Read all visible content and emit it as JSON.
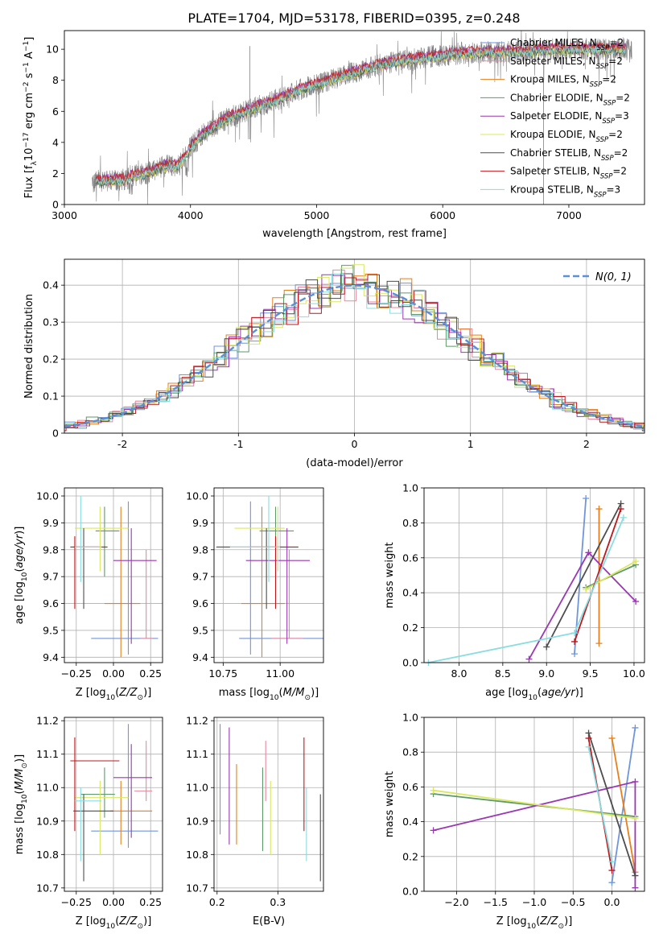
{
  "figure_title": "PLATE=1704, MJD=53178, FIBERID=0395, z=0.248",
  "colors": {
    "Chabrier MILES": "#6f95dd",
    "Salpeter MILES": "#e9879e",
    "Kroupa MILES": "#e67f1c",
    "Chabrier ELODIE": "#5e9a6a",
    "Salpeter ELODIE": "#9b37b4",
    "Kroupa ELODIE": "#d9e85e",
    "Chabrier STELIB": "#4d4d4d",
    "Salpeter STELIB": "#c0171c",
    "Kroupa STELIB": "#88dde0",
    "data": "#808080",
    "gaussian": "#5b8fd8"
  },
  "chart_data": [
    {
      "id": "spectrum",
      "type": "line",
      "xlabel": "wavelength [Angstrom, rest frame]",
      "ylabel": "Flux [f_λ 10^-17 erg cm^-2 s^-1 A^-1]",
      "xlim": [
        3000,
        7600
      ],
      "ylim": [
        0,
        11.2
      ],
      "xticks": [
        3000,
        4000,
        5000,
        6000,
        7000
      ],
      "yticks": [
        0,
        2,
        4,
        6,
        8,
        10
      ],
      "grid": false,
      "legend_position": "top-right",
      "legend": [
        {
          "name": "Chabrier MILES",
          "nssp": "2"
        },
        {
          "name": "Salpeter MILES",
          "nssp": "2"
        },
        {
          "name": "Kroupa MILES",
          "nssp": "2"
        },
        {
          "name": "Chabrier ELODIE",
          "nssp": "2"
        },
        {
          "name": "Salpeter ELODIE",
          "nssp": "3"
        },
        {
          "name": "Kroupa ELODIE",
          "nssp": "2"
        },
        {
          "name": "Chabrier STELIB",
          "nssp": "2"
        },
        {
          "name": "Salpeter STELIB",
          "nssp": "2"
        },
        {
          "name": "Kroupa STELIB",
          "nssp": "3"
        }
      ],
      "continuum": {
        "x": [
          3220,
          3500,
          3520,
          3650,
          3800,
          3900,
          3950,
          4000,
          4100,
          4300,
          4500,
          4700,
          4900,
          5100,
          5300,
          5500,
          5700,
          5900,
          6100,
          6300,
          6500,
          6700,
          6900,
          7100,
          7300,
          7500
        ],
        "y": [
          1.5,
          1.6,
          1.8,
          2.0,
          2.5,
          2.5,
          3.0,
          3.7,
          4.5,
          5.6,
          6.2,
          6.8,
          7.5,
          8.0,
          8.5,
          9.0,
          9.3,
          9.5,
          9.7,
          9.8,
          9.8,
          9.9,
          10.0,
          10.0,
          10.0,
          10.0
        ]
      }
    },
    {
      "id": "residuals",
      "type": "histogram",
      "xlabel": "(data-model)/error",
      "ylabel": "Normed distribution",
      "xlim": [
        -2.5,
        2.5
      ],
      "ylim": [
        0,
        0.47
      ],
      "xticks": [
        -2,
        -1,
        0,
        1,
        2
      ],
      "yticks": [
        0.0,
        0.1,
        0.2,
        0.3,
        0.4
      ],
      "grid": true,
      "legend_position": "top-right",
      "gaussian_label": "N(0, 1)",
      "bin_width": 0.1
    },
    {
      "id": "age_vs_Z",
      "type": "errorbar",
      "xlabel": "Z [log10(Z/Z_sun)]",
      "ylabel": "age [log10(age/yr)]",
      "xlim": [
        -0.33,
        0.33
      ],
      "ylim": [
        9.38,
        10.03
      ],
      "xticks": [
        -0.25,
        0.0,
        0.25
      ],
      "xticklabels": [
        "−0.25",
        "0.00",
        "0.25"
      ],
      "yticks": [
        9.4,
        9.5,
        9.6,
        9.7,
        9.8,
        9.9,
        10.0
      ],
      "yticklabels": [
        "9.4",
        "9.5",
        "9.6",
        "9.7",
        "9.8",
        "9.9",
        "10.0"
      ],
      "grid": true,
      "points": [
        {
          "model": "Chabrier MILES",
          "x": 0.1,
          "xlo": -0.15,
          "xhi": 0.3,
          "y": 9.47,
          "ylo": 9.41,
          "yhi": 9.98
        },
        {
          "model": "Salpeter MILES",
          "x": 0.22,
          "xlo": 0.18,
          "xhi": 0.26,
          "y": 9.47,
          "ylo": 9.47,
          "yhi": 9.8
        },
        {
          "model": "Kroupa MILES",
          "x": 0.05,
          "xlo": -0.06,
          "xhi": 0.18,
          "y": 9.6,
          "ylo": 9.4,
          "yhi": 9.96
        },
        {
          "model": "Chabrier ELODIE",
          "x": -0.06,
          "xlo": -0.12,
          "xhi": 0.04,
          "y": 9.87,
          "ylo": 9.7,
          "yhi": 9.96
        },
        {
          "model": "Salpeter ELODIE",
          "x": 0.12,
          "xlo": 0.0,
          "xhi": 0.29,
          "y": 9.76,
          "ylo": 9.45,
          "yhi": 9.88
        },
        {
          "model": "Kroupa ELODIE",
          "x": -0.09,
          "xlo": -0.26,
          "xhi": 0.1,
          "y": 9.88,
          "ylo": 9.72,
          "yhi": 9.96
        },
        {
          "model": "Chabrier STELIB",
          "x": -0.2,
          "xlo": -0.27,
          "xhi": -0.1,
          "y": 9.81,
          "ylo": 9.58,
          "yhi": 9.88
        },
        {
          "model": "Salpeter STELIB",
          "x": -0.26,
          "xlo": -0.29,
          "xhi": -0.04,
          "y": 9.81,
          "ylo": 9.58,
          "yhi": 9.85
        },
        {
          "model": "Kroupa STELIB",
          "x": -0.22,
          "xlo": -0.26,
          "xhi": -0.08,
          "y": 9.81,
          "ylo": 9.68,
          "yhi": 10.0
        }
      ]
    },
    {
      "id": "age_vs_mass",
      "type": "errorbar",
      "xlabel": "mass [log10(M/M_sun)]",
      "ylabel": "",
      "xlim": [
        10.71,
        11.19
      ],
      "ylim": [
        9.38,
        10.03
      ],
      "xticks": [
        10.75,
        11.0
      ],
      "xticklabels": [
        "10.75",
        "11.00"
      ],
      "yticks": [
        9.4,
        9.5,
        9.6,
        9.7,
        9.8,
        9.9,
        10.0
      ],
      "yticklabels": [
        "9.4",
        "9.5",
        "9.6",
        "9.7",
        "9.8",
        "9.9",
        "10.0"
      ],
      "grid": true,
      "points": [
        {
          "model": "Chabrier MILES",
          "x": 10.87,
          "xlo": 10.82,
          "xhi": 11.19,
          "y": 9.47,
          "ylo": 9.41,
          "yhi": 9.98
        },
        {
          "model": "Salpeter MILES",
          "x": 11.04,
          "xlo": 10.96,
          "xhi": 11.1,
          "y": 9.47,
          "ylo": 9.47,
          "yhi": 9.8
        },
        {
          "model": "Kroupa MILES",
          "x": 10.92,
          "xlo": 10.83,
          "xhi": 11.02,
          "y": 9.6,
          "ylo": 9.4,
          "yhi": 9.96
        },
        {
          "model": "Chabrier ELODIE",
          "x": 10.98,
          "xlo": 10.91,
          "xhi": 11.06,
          "y": 9.87,
          "ylo": 9.7,
          "yhi": 9.96
        },
        {
          "model": "Salpeter ELODIE",
          "x": 11.03,
          "xlo": 10.85,
          "xhi": 11.13,
          "y": 9.76,
          "ylo": 9.45,
          "yhi": 9.88
        },
        {
          "model": "Kroupa ELODIE",
          "x": 10.99,
          "xlo": 10.8,
          "xhi": 11.02,
          "y": 9.88,
          "ylo": 9.72,
          "yhi": 9.96
        },
        {
          "model": "Chabrier STELIB",
          "x": 10.94,
          "xlo": 10.72,
          "xhi": 10.98,
          "y": 9.81,
          "ylo": 9.58,
          "yhi": 9.88
        },
        {
          "model": "Salpeter STELIB",
          "x": 10.98,
          "xlo": 10.87,
          "xhi": 11.08,
          "y": 9.81,
          "ylo": 9.58,
          "yhi": 9.85
        },
        {
          "model": "Kroupa STELIB",
          "x": 10.95,
          "xlo": 10.78,
          "xhi": 11.0,
          "y": 9.81,
          "ylo": 9.68,
          "yhi": 10.0
        }
      ]
    },
    {
      "id": "weight_vs_age",
      "type": "line",
      "xlabel": "age [log10(age/yr)]",
      "ylabel": "mass weight",
      "xlim": [
        7.6,
        10.12
      ],
      "ylim": [
        0,
        1.0
      ],
      "xticks": [
        8.0,
        8.5,
        9.0,
        9.5,
        10.0
      ],
      "xticklabels": [
        "8.0",
        "8.5",
        "9.0",
        "9.5",
        "10.0"
      ],
      "yticks": [
        0.0,
        0.2,
        0.4,
        0.6,
        0.8,
        1.0
      ],
      "yticklabels": [
        "0.0",
        "0.2",
        "0.4",
        "0.6",
        "0.8",
        "1.0"
      ],
      "grid": true,
      "series": [
        {
          "model": "Chabrier MILES",
          "x": [
            9.32,
            9.45
          ],
          "y": [
            0.05,
            0.94
          ]
        },
        {
          "model": "Kroupa MILES",
          "x": [
            9.6,
            9.6
          ],
          "y": [
            0.11,
            0.88
          ]
        },
        {
          "model": "Chabrier ELODIE",
          "x": [
            9.45,
            10.02
          ],
          "y": [
            0.43,
            0.56
          ]
        },
        {
          "model": "Salpeter ELODIE",
          "x": [
            8.8,
            9.48,
            10.02
          ],
          "y": [
            0.02,
            0.63,
            0.35
          ]
        },
        {
          "model": "Kroupa ELODIE",
          "x": [
            9.45,
            10.02
          ],
          "y": [
            0.42,
            0.58
          ]
        },
        {
          "model": "Chabrier STELIB",
          "x": [
            9.0,
            9.85
          ],
          "y": [
            0.09,
            0.91
          ]
        },
        {
          "model": "Salpeter STELIB",
          "x": [
            9.32,
            9.85
          ],
          "y": [
            0.12,
            0.88
          ]
        },
        {
          "model": "Kroupa STELIB",
          "x": [
            7.65,
            9.32,
            9.88
          ],
          "y": [
            0.0,
            0.17,
            0.83
          ]
        }
      ]
    },
    {
      "id": "mass_vs_Z",
      "type": "errorbar",
      "xlabel": "Z [log10(Z/Z_sun)]",
      "ylabel": "mass [log10(M/M_sun)]",
      "xlim": [
        -0.33,
        0.33
      ],
      "ylim": [
        10.69,
        11.21
      ],
      "xticks": [
        -0.25,
        0.0,
        0.25
      ],
      "xticklabels": [
        "−0.25",
        "0.00",
        "0.25"
      ],
      "yticks": [
        10.7,
        10.8,
        10.9,
        11.0,
        11.1,
        11.2
      ],
      "yticklabels": [
        "10.7",
        "10.8",
        "10.9",
        "11.0",
        "11.1",
        "11.2"
      ],
      "grid": true,
      "points": [
        {
          "model": "Chabrier MILES",
          "x": 0.1,
          "xlo": -0.15,
          "xhi": 0.3,
          "y": 10.87,
          "ylo": 10.82,
          "yhi": 11.19
        },
        {
          "model": "Salpeter MILES",
          "x": 0.22,
          "xlo": 0.14,
          "xhi": 0.26,
          "y": 10.99,
          "ylo": 10.96,
          "yhi": 11.14
        },
        {
          "model": "Kroupa MILES",
          "x": 0.05,
          "xlo": -0.02,
          "xhi": 0.26,
          "y": 10.93,
          "ylo": 10.83,
          "yhi": 11.02
        },
        {
          "model": "Chabrier ELODIE",
          "x": -0.06,
          "xlo": -0.22,
          "xhi": 0.01,
          "y": 10.98,
          "ylo": 10.91,
          "yhi": 11.06
        },
        {
          "model": "Salpeter ELODIE",
          "x": 0.12,
          "xlo": 0.0,
          "xhi": 0.26,
          "y": 11.03,
          "ylo": 10.85,
          "yhi": 11.13
        },
        {
          "model": "Kroupa ELODIE",
          "x": -0.09,
          "xlo": -0.26,
          "xhi": 0.1,
          "y": 10.97,
          "ylo": 10.8,
          "yhi": 11.02
        },
        {
          "model": "Chabrier STELIB",
          "x": -0.2,
          "xlo": -0.27,
          "xhi": 0.0,
          "y": 10.93,
          "ylo": 10.72,
          "yhi": 10.98
        },
        {
          "model": "Salpeter STELIB",
          "x": -0.26,
          "xlo": -0.29,
          "xhi": 0.04,
          "y": 11.08,
          "ylo": 10.87,
          "yhi": 11.15
        },
        {
          "model": "Kroupa STELIB",
          "x": -0.22,
          "xlo": -0.26,
          "xhi": -0.08,
          "y": 10.96,
          "ylo": 10.78,
          "yhi": 11.0
        }
      ]
    },
    {
      "id": "mass_vs_ebv",
      "type": "errorbar",
      "xlabel": "E(B-V)",
      "ylabel": "",
      "xlim": [
        0.195,
        0.375
      ],
      "ylim": [
        10.69,
        11.21
      ],
      "xticks": [
        0.2,
        0.3
      ],
      "xticklabels": [
        "0.2",
        "0.3"
      ],
      "yticks": [
        10.7,
        10.8,
        10.9,
        11.0,
        11.1,
        11.2
      ],
      "yticklabels": [
        "10.7",
        "10.8",
        "10.9",
        "11.0",
        "11.1",
        "11.2"
      ],
      "grid": true,
      "points": [
        {
          "model": "Chabrier MILES",
          "x": 0.205,
          "xlo": 0.205,
          "xhi": 0.205,
          "y": 11.0,
          "ylo": 10.86,
          "yhi": 11.19
        },
        {
          "model": "Salpeter MILES",
          "x": 0.28,
          "xlo": 0.28,
          "xhi": 0.28,
          "y": 11.0,
          "ylo": 10.96,
          "yhi": 11.14
        },
        {
          "model": "Kroupa MILES",
          "x": 0.232,
          "xlo": 0.232,
          "xhi": 0.232,
          "y": 10.95,
          "ylo": 10.83,
          "yhi": 11.07
        },
        {
          "model": "Chabrier ELODIE",
          "x": 0.275,
          "xlo": 0.275,
          "xhi": 0.275,
          "y": 10.95,
          "ylo": 10.81,
          "yhi": 11.06
        },
        {
          "model": "Salpeter ELODIE",
          "x": 0.22,
          "xlo": 0.22,
          "xhi": 0.22,
          "y": 11.0,
          "ylo": 10.83,
          "yhi": 11.18
        },
        {
          "model": "Kroupa ELODIE",
          "x": 0.288,
          "xlo": 0.288,
          "xhi": 0.288,
          "y": 10.92,
          "ylo": 10.8,
          "yhi": 11.02
        },
        {
          "model": "Chabrier STELIB",
          "x": 0.37,
          "xlo": 0.37,
          "xhi": 0.37,
          "y": 10.85,
          "ylo": 10.72,
          "yhi": 10.98
        },
        {
          "model": "Salpeter STELIB",
          "x": 0.343,
          "xlo": 0.343,
          "xhi": 0.343,
          "y": 11.0,
          "ylo": 10.87,
          "yhi": 11.15
        },
        {
          "model": "Kroupa STELIB",
          "x": 0.347,
          "xlo": 0.347,
          "xhi": 0.347,
          "y": 10.9,
          "ylo": 10.78,
          "yhi": 11.0
        }
      ]
    },
    {
      "id": "weight_vs_Z",
      "type": "line",
      "xlabel": "Z [log10(Z/Z_sun)]",
      "ylabel": "mass weight",
      "xlim": [
        -2.42,
        0.42
      ],
      "ylim": [
        0,
        1.0
      ],
      "xticks": [
        -2.0,
        -1.5,
        -1.0,
        -0.5,
        0.0
      ],
      "xticklabels": [
        "−2.0",
        "−1.5",
        "−1.0",
        "−0.5",
        "0.0"
      ],
      "yticks": [
        0.0,
        0.2,
        0.4,
        0.6,
        0.8,
        1.0
      ],
      "yticklabels": [
        "0.0",
        "0.2",
        "0.4",
        "0.6",
        "0.8",
        "1.0"
      ],
      "grid": true,
      "series": [
        {
          "model": "Chabrier MILES",
          "x": [
            0.0,
            0.3
          ],
          "y": [
            0.05,
            0.94
          ]
        },
        {
          "model": "Kroupa MILES",
          "x": [
            0.0,
            0.3
          ],
          "y": [
            0.88,
            0.11
          ]
        },
        {
          "model": "Chabrier ELODIE",
          "x": [
            -2.3,
            0.3
          ],
          "y": [
            0.56,
            0.43
          ]
        },
        {
          "model": "Salpeter ELODIE",
          "x": [
            -2.3,
            0.3,
            0.3
          ],
          "y": [
            0.35,
            0.63,
            0.02
          ]
        },
        {
          "model": "Kroupa ELODIE",
          "x": [
            -2.3,
            0.3
          ],
          "y": [
            0.58,
            0.42
          ]
        },
        {
          "model": "Chabrier STELIB",
          "x": [
            -0.3,
            0.3
          ],
          "y": [
            0.91,
            0.09
          ]
        },
        {
          "model": "Salpeter STELIB",
          "x": [
            -0.3,
            0.0
          ],
          "y": [
            0.88,
            0.12
          ]
        },
        {
          "model": "Kroupa STELIB",
          "x": [
            -0.3,
            0.0
          ],
          "y": [
            0.83,
            0.17
          ]
        }
      ]
    }
  ]
}
